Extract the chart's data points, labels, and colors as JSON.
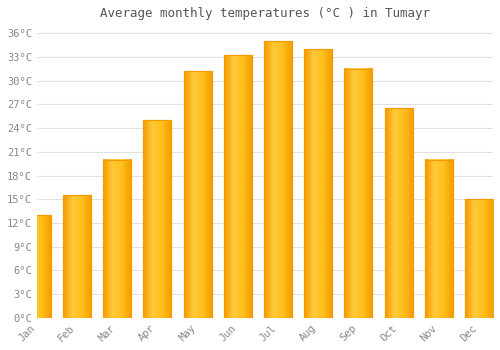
{
  "title": "Average monthly temperatures (°C ) in Tumayr",
  "months": [
    "Jan",
    "Feb",
    "Mar",
    "Apr",
    "May",
    "Jun",
    "Jul",
    "Aug",
    "Sep",
    "Oct",
    "Nov",
    "Dec"
  ],
  "values": [
    13.0,
    15.5,
    20.0,
    25.0,
    31.2,
    33.2,
    35.0,
    34.0,
    31.5,
    26.5,
    20.0,
    15.0
  ],
  "bar_color_main": "#FFBB00",
  "bar_color_edge": "#F59B00",
  "background_color": "#FFFFFF",
  "grid_color": "#E0E0E0",
  "ylim": [
    0,
    37
  ],
  "yticks": [
    0,
    3,
    6,
    9,
    12,
    15,
    18,
    21,
    24,
    27,
    30,
    33,
    36
  ],
  "ytick_labels": [
    "0°C",
    "3°C",
    "6°C",
    "9°C",
    "12°C",
    "15°C",
    "18°C",
    "21°C",
    "24°C",
    "27°C",
    "30°C",
    "33°C",
    "36°C"
  ],
  "title_fontsize": 9,
  "tick_fontsize": 7.5,
  "tick_font_color": "#888888",
  "title_color": "#555555"
}
